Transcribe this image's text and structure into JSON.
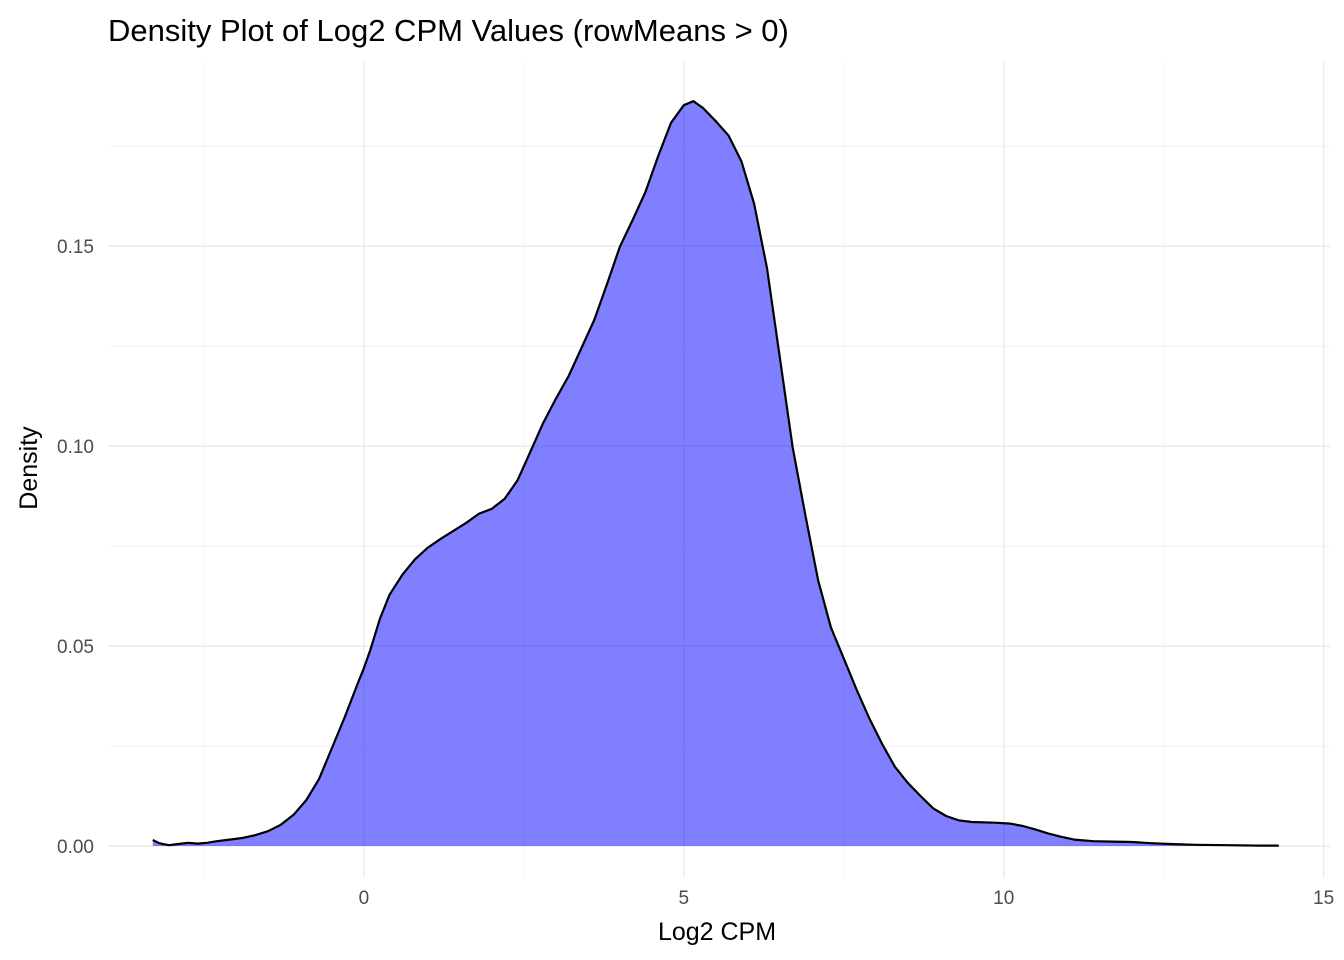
{
  "chart_data": {
    "type": "area",
    "title": "Density Plot of Log2 CPM Values (rowMeans > 0)",
    "xlabel": "Log2 CPM",
    "ylabel": "Density",
    "xlim": [
      -4.0,
      15.1
    ],
    "ylim": [
      -0.008,
      0.196
    ],
    "x_ticks": [
      0,
      5,
      10,
      15
    ],
    "x_tick_labels": [
      "0",
      "5",
      "10",
      "15"
    ],
    "y_ticks": [
      0.0,
      0.05,
      0.1,
      0.15
    ],
    "y_tick_labels": [
      "0.00",
      "0.05",
      "0.10",
      "0.15"
    ],
    "grid": true,
    "fill_color": "#0000ff",
    "fill_opacity": 0.5,
    "line_color": "#000000",
    "series": [
      {
        "x": [
          -3.3,
          -3.2,
          -3.05,
          -2.9,
          -2.75,
          -2.6,
          -2.45,
          -2.3,
          -2.1,
          -1.9,
          -1.7,
          -1.5,
          -1.3,
          -1.1,
          -0.9,
          -0.7,
          -0.5,
          -0.3,
          -0.1,
          0.0,
          0.1,
          0.25,
          0.4,
          0.6,
          0.8,
          1.0,
          1.2,
          1.4,
          1.6,
          1.8,
          2.0,
          2.2,
          2.4,
          2.6,
          2.8,
          3.0,
          3.2,
          3.4,
          3.6,
          3.8,
          4.0,
          4.2,
          4.4,
          4.6,
          4.8,
          5.0,
          5.15,
          5.3,
          5.5,
          5.7,
          5.9,
          6.1,
          6.3,
          6.5,
          6.7,
          6.9,
          7.1,
          7.3,
          7.5,
          7.7,
          7.9,
          8.1,
          8.3,
          8.5,
          8.7,
          8.9,
          9.1,
          9.3,
          9.5,
          9.7,
          9.9,
          10.1,
          10.3,
          10.5,
          10.7,
          10.9,
          11.1,
          11.4,
          11.7,
          12.0,
          12.3,
          12.6,
          13.0,
          13.5,
          14.0,
          14.3
        ],
        "y": [
          0.0015,
          0.0007,
          0.0002,
          0.0005,
          0.0008,
          0.0006,
          0.0008,
          0.0012,
          0.0016,
          0.002,
          0.0027,
          0.0037,
          0.0053,
          0.0078,
          0.0115,
          0.0168,
          0.0245,
          0.0322,
          0.0405,
          0.0445,
          0.049,
          0.0568,
          0.0628,
          0.0678,
          0.0717,
          0.0746,
          0.0768,
          0.0788,
          0.0808,
          0.0831,
          0.0843,
          0.0868,
          0.0914,
          0.0985,
          0.1057,
          0.1118,
          0.1175,
          0.1245,
          0.1315,
          0.1405,
          0.1498,
          0.1565,
          0.1635,
          0.1725,
          0.1808,
          0.1852,
          0.1862,
          0.1845,
          0.1812,
          0.1776,
          0.1712,
          0.1605,
          0.1445,
          0.1222,
          0.0998,
          0.0827,
          0.0664,
          0.0546,
          0.0469,
          0.0391,
          0.0319,
          0.0255,
          0.0198,
          0.0158,
          0.0125,
          0.0094,
          0.0075,
          0.0064,
          0.006,
          0.0059,
          0.0058,
          0.0056,
          0.005,
          0.0041,
          0.0031,
          0.0023,
          0.0016,
          0.0012,
          0.0011,
          0.001,
          0.0007,
          0.0005,
          0.0003,
          0.0002,
          0.0001,
          0.0001
        ]
      }
    ]
  }
}
